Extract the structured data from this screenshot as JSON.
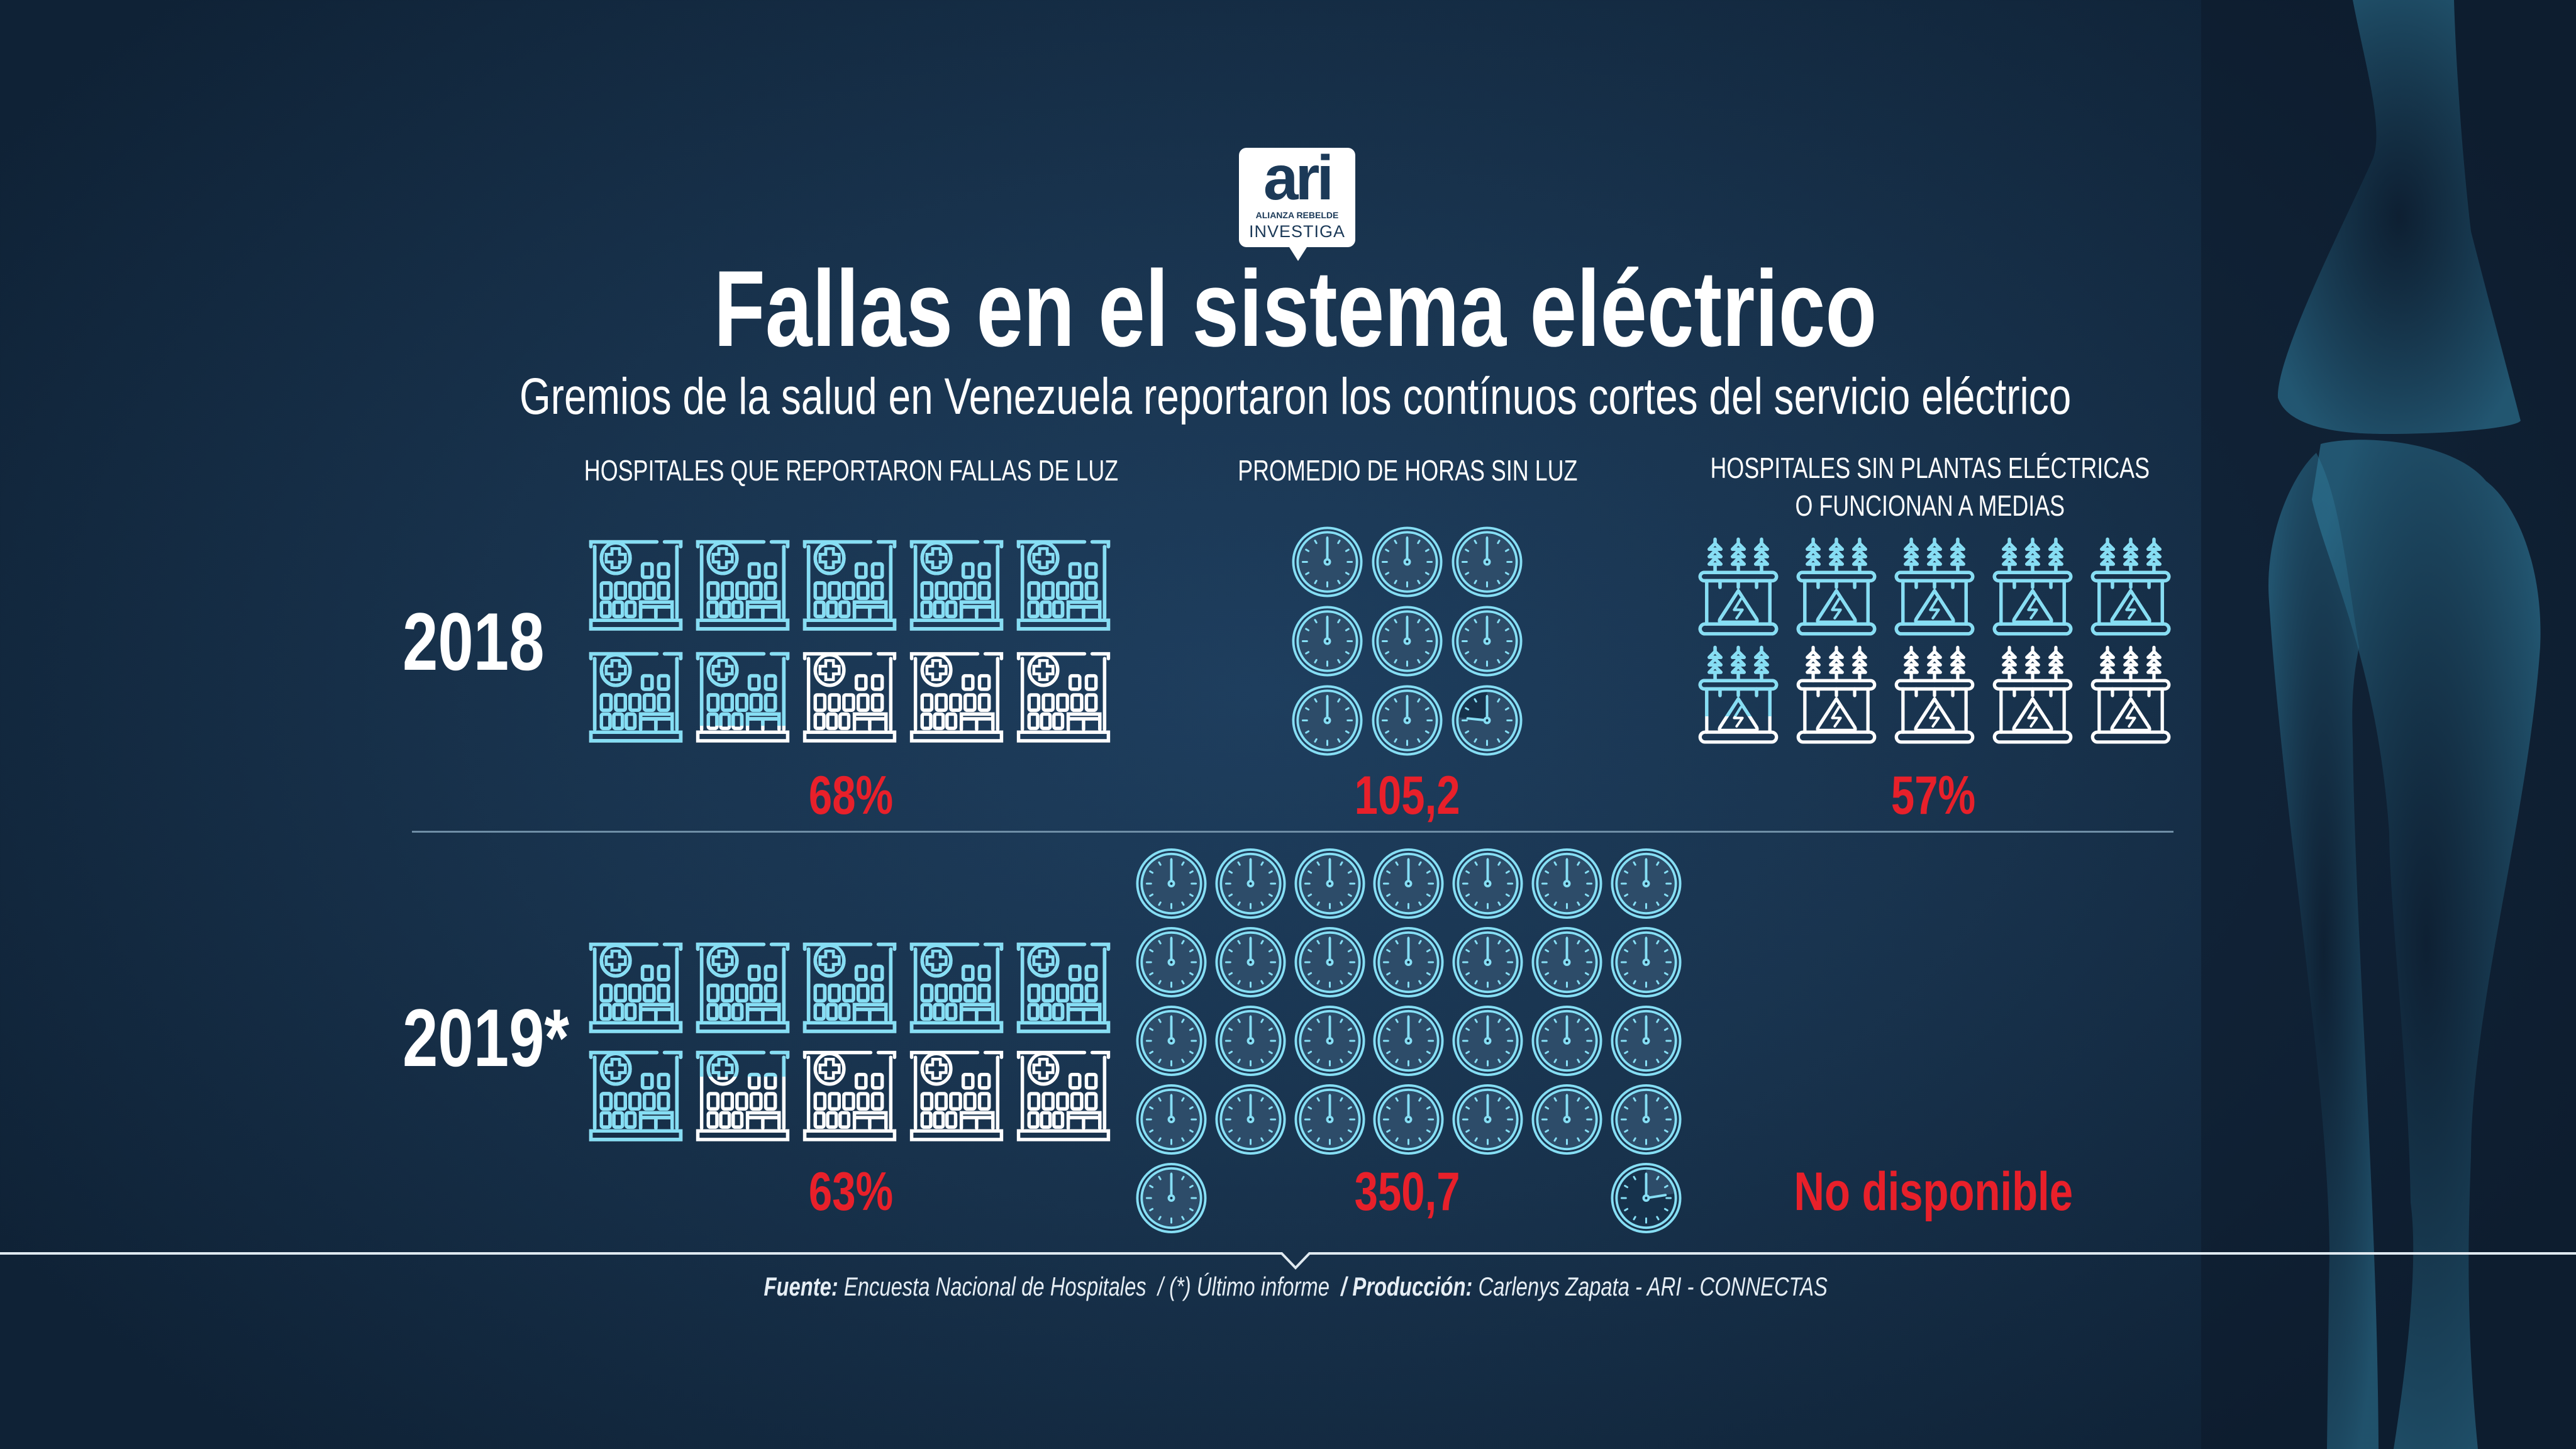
{
  "logo": {
    "wordmark": "ari",
    "line1": "ALIANZA REBELDE",
    "line2": "INVESTIGA"
  },
  "title": "Fallas en el sistema eléctrico",
  "subtitle": "Gremios de la salud en Venezuela reportaron los contínuos cortes del servicio eléctrico",
  "columns": {
    "hospitals": "HOSPITALES QUE REPORTARON FALLAS DE LUZ",
    "hours": "PROMEDIO DE HORAS SIN LUZ",
    "plants_line1": "HOSPITALES SIN PLANTAS ELÉCTRICAS",
    "plants_line2": "O FUNCIONAN A MEDIAS"
  },
  "rows": [
    {
      "year": "2018",
      "hospitals_label": "68%",
      "hospitals_percent": 68,
      "hours_label": "105,2",
      "hours_value": 105.2,
      "plants_label": "57%",
      "plants_percent": 57
    },
    {
      "year": "2019*",
      "hospitals_label": "63%",
      "hospitals_percent": 63,
      "hours_label": "350,7",
      "hours_value": 350.7,
      "plants_label": "No disponible",
      "plants_percent": null
    }
  ],
  "footer": {
    "source_label": "Fuente:",
    "source": "Encuesta Nacional de Hospitales",
    "note": "/ (*) Último informe",
    "production_label": "/ Producción:",
    "production": "Carlenys Zapata - ARI - CONNECTAS"
  },
  "colors": {
    "accent": "#86def4",
    "empty": "#ffffff",
    "value": "#e8202a",
    "background": "#1b3a57"
  },
  "icons": {
    "hospital": "hospital-building-icon",
    "clock": "clock-icon",
    "plant": "electric-transformer-icon"
  }
}
